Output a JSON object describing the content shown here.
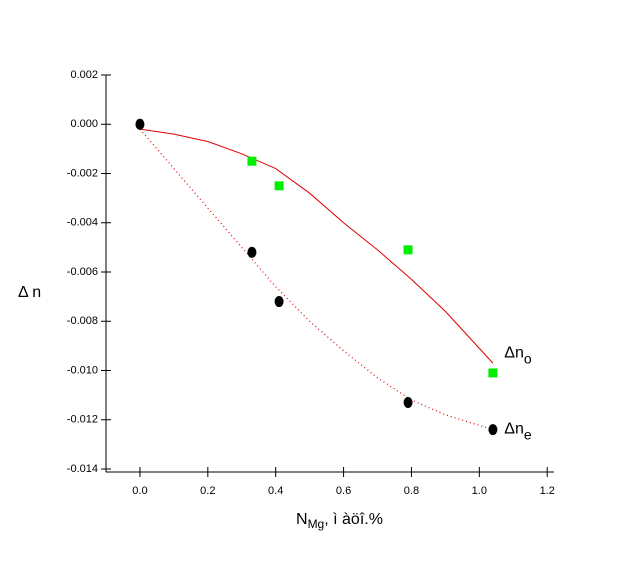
{
  "chart_data": {
    "type": "scatter",
    "xlabel": "N",
    "xlabel_sub": "Mg",
    "xlabel_rest": ", ì àöî.%",
    "ylabel": "Δ n",
    "xlim": [
      -0.1,
      1.22
    ],
    "ylim": [
      -0.014,
      0.002
    ],
    "xticks": [
      {
        "value": 0,
        "label": "0.0"
      },
      0.2,
      0.4,
      0.6,
      0.8,
      {
        "value": 1,
        "label": "1.0"
      },
      1.2
    ],
    "yticks": [
      0.002,
      {
        "value": 0,
        "label": "0.000"
      },
      -0.002,
      -0.004,
      -0.006,
      -0.008,
      {
        "value": -0.01,
        "label": "-0.010"
      },
      -0.012,
      -0.014
    ],
    "series": [
      {
        "color": "#00ee00",
        "marker": "square",
        "x": [
          0.33,
          0.41,
          0.79,
          1.04
        ],
        "values": [
          -0.0015,
          -0.0025,
          -0.0051,
          -0.0101
        ]
      },
      {
        "color": "#000000",
        "marker": "circle",
        "x": [
          0,
          0.33,
          0.41,
          0.79,
          1.04
        ],
        "values": [
          0,
          -0.0052,
          -0.0072,
          -0.0113,
          -0.0124
        ]
      }
    ],
    "fits": [
      {
        "color": "#e00000",
        "style": "solid",
        "x": [
          0,
          0.1,
          0.2,
          0.3,
          0.4,
          0.5,
          0.6,
          0.7,
          0.8,
          0.9,
          1.04
        ],
        "values": [
          -0.0002,
          -0.0004,
          -0.0007,
          -0.0012,
          -0.0018,
          -0.0028,
          -0.004,
          -0.0051,
          -0.0063,
          -0.0076,
          -0.0097
        ]
      },
      {
        "color": "#e00000",
        "style": "dotted",
        "x": [
          0,
          0.1,
          0.2,
          0.3,
          0.4,
          0.5,
          0.6,
          0.7,
          0.8,
          0.9,
          1.04
        ],
        "values": [
          -0.0002,
          -0.0018,
          -0.0034,
          -0.005,
          -0.0066,
          -0.008,
          -0.0092,
          -0.0103,
          -0.0112,
          -0.0118,
          -0.0124
        ]
      }
    ],
    "annotations": [
      {
        "text": "Δn",
        "sub": "o",
        "x": 1.05,
        "y": -0.0093
      },
      {
        "text": "Δn",
        "sub": "e",
        "x": 1.05,
        "y": -0.0124
      }
    ]
  }
}
